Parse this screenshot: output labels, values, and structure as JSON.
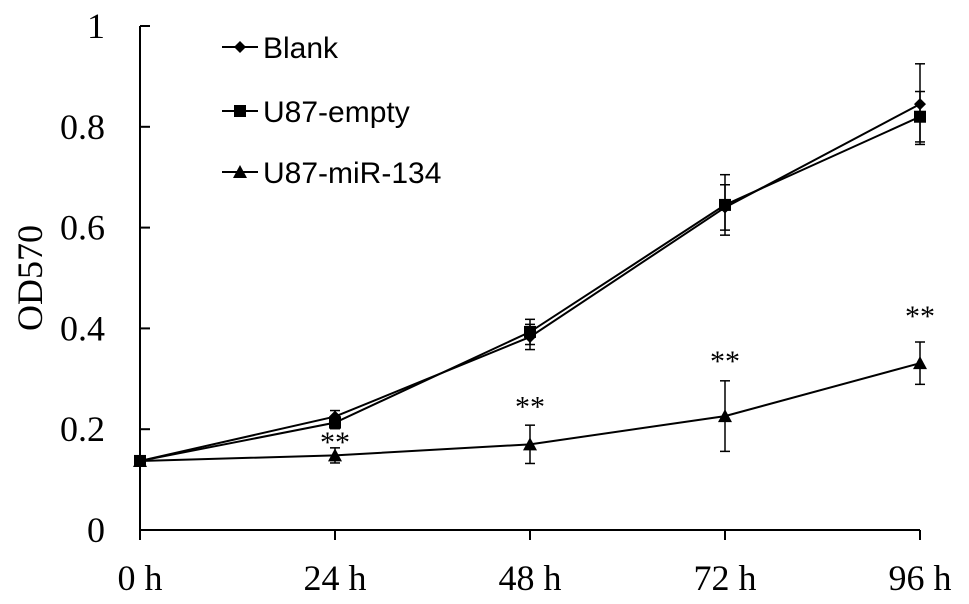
{
  "chart_data": {
    "type": "line",
    "title": "",
    "xlabel": "",
    "ylabel": "OD570",
    "categories": [
      "0 h",
      "24 h",
      "48 h",
      "72 h",
      "96 h"
    ],
    "ylim": [
      0,
      1
    ],
    "yticks": [
      "0",
      "0.2",
      "0.4",
      "0.6",
      "0.8",
      "1"
    ],
    "grid": false,
    "legend_position": "top-left",
    "series": [
      {
        "name": "Blank",
        "marker": "diamond",
        "values": [
          0.137,
          0.225,
          0.383,
          0.64,
          0.845
        ],
        "errors": [
          0.0,
          0.012,
          0.025,
          0.045,
          0.08
        ]
      },
      {
        "name": "U87-empty",
        "marker": "square",
        "values": [
          0.137,
          0.213,
          0.393,
          0.645,
          0.82
        ],
        "errors": [
          0.0,
          0.012,
          0.025,
          0.06,
          0.05
        ]
      },
      {
        "name": "U87-miR-134",
        "marker": "triangle",
        "values": [
          0.137,
          0.148,
          0.17,
          0.226,
          0.331
        ],
        "errors": [
          0.0,
          0.015,
          0.038,
          0.07,
          0.042
        ]
      }
    ],
    "annotations": [
      {
        "category": "24 h",
        "text": "**",
        "y": 0.175
      },
      {
        "category": "48 h",
        "text": "**",
        "y": 0.245
      },
      {
        "category": "72 h",
        "text": "**",
        "y": 0.335
      },
      {
        "category": "96 h",
        "text": "**",
        "y": 0.425
      }
    ]
  }
}
